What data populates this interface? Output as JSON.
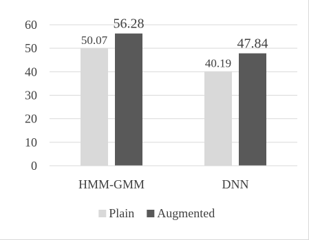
{
  "chart_data": {
    "type": "bar",
    "categories": [
      "HMM-GMM",
      "DNN"
    ],
    "series": [
      {
        "name": "Plain",
        "values": [
          50.07,
          40.19
        ],
        "color": "#d9d9d9"
      },
      {
        "name": "Augmented",
        "values": [
          56.28,
          47.84
        ],
        "color": "#595959"
      }
    ],
    "data_labels": [
      [
        "50.07",
        "40.19"
      ],
      [
        "56.28",
        "47.84"
      ]
    ],
    "y_ticks": [
      "0",
      "10",
      "20",
      "30",
      "40",
      "50",
      "60"
    ],
    "ylim": [
      0,
      60
    ],
    "title": "",
    "xlabel": "",
    "ylabel": "",
    "grid": true,
    "legend_position": "bottom",
    "gridline_color": "#d9d9d9",
    "text_color": "#404040"
  }
}
